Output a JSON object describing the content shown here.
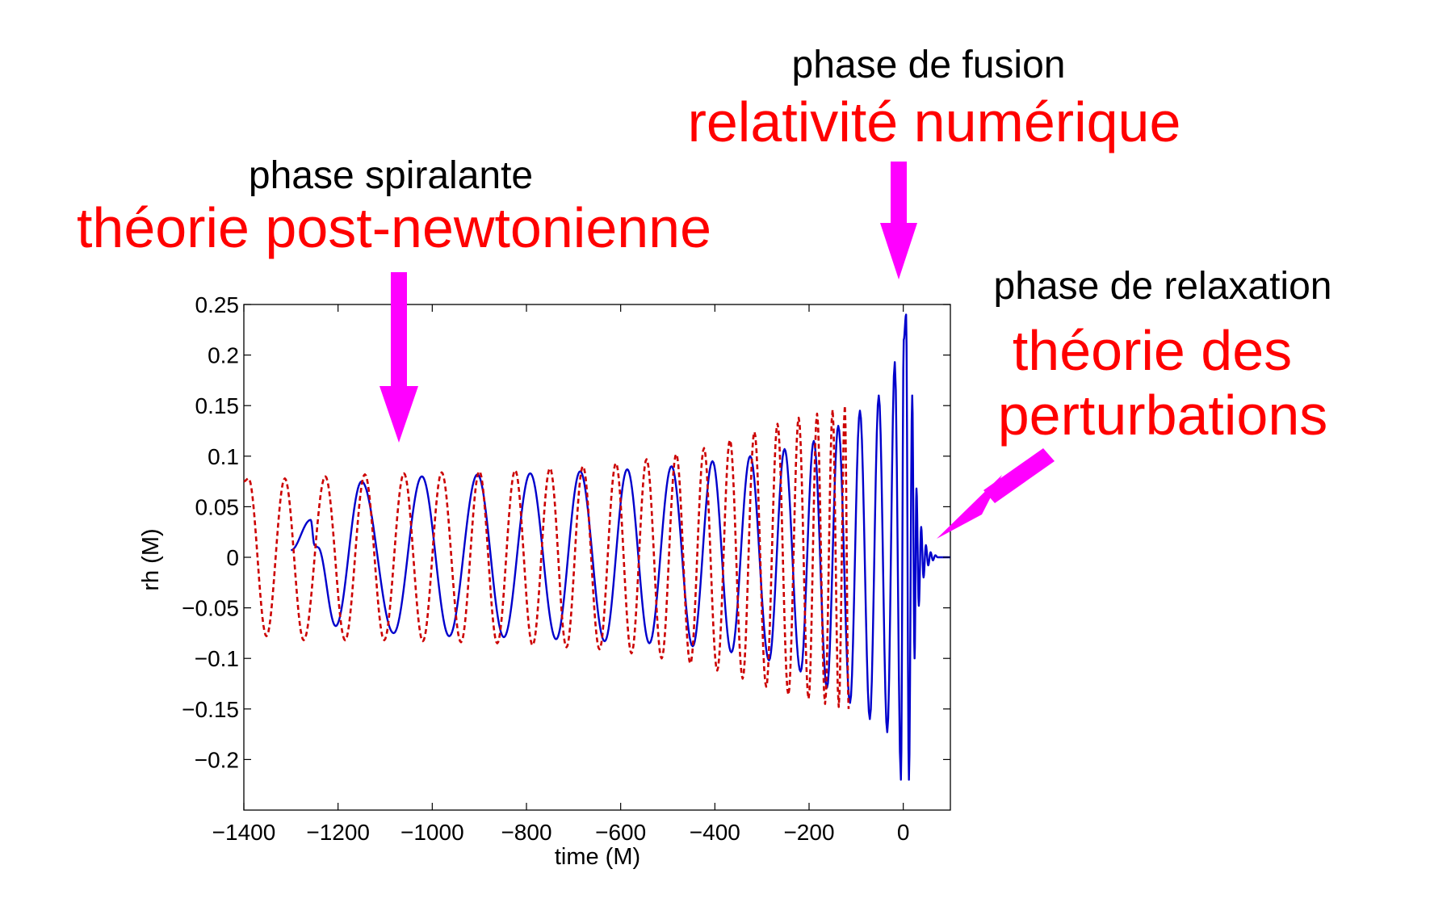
{
  "chart_data": {
    "type": "line",
    "xlabel": "time (M)",
    "ylabel": "rh (M)",
    "xlim": [
      -1400,
      100
    ],
    "ylim": [
      -0.25,
      0.25
    ],
    "x_ticks": [
      -1400,
      -1200,
      -1000,
      -800,
      -600,
      -400,
      -200,
      0
    ],
    "x_tick_labels": [
      "−1400",
      "−1200",
      "−1000",
      "−800",
      "−600",
      "−400",
      "−200",
      "0"
    ],
    "y_ticks": [
      0.25,
      0.2,
      0.15,
      0.1,
      0.05,
      0,
      -0.05,
      -0.1,
      -0.15,
      -0.2
    ],
    "y_tick_labels": [
      "0.25",
      "0.2",
      "0.15",
      "0.1",
      "0.05",
      "0",
      "−0.05",
      "−0.1",
      "−0.15",
      "−0.2"
    ],
    "grid": false,
    "series": [
      {
        "style": "solid",
        "color": "#0000cc",
        "extrema": [
          [
            -1300,
            0.007
          ],
          [
            -1258,
            0.037
          ],
          [
            -1250,
            0.012
          ],
          [
            -1243,
            0.01
          ],
          [
            -1205,
            -0.068
          ],
          [
            -1150,
            0.075
          ],
          [
            -1082,
            -0.075
          ],
          [
            -1022,
            0.08
          ],
          [
            -964,
            -0.078
          ],
          [
            -904,
            0.082
          ],
          [
            -848,
            -0.079
          ],
          [
            -792,
            0.083
          ],
          [
            -737,
            -0.081
          ],
          [
            -686,
            0.085
          ],
          [
            -634,
            -0.083
          ],
          [
            -586,
            0.087
          ],
          [
            -539,
            -0.085
          ],
          [
            -492,
            0.09
          ],
          [
            -447,
            -0.088
          ],
          [
            -405,
            0.095
          ],
          [
            -365,
            -0.094
          ],
          [
            -325,
            0.1
          ],
          [
            -285,
            -0.102
          ],
          [
            -252,
            0.107
          ],
          [
            -218,
            -0.113
          ],
          [
            -190,
            0.115
          ],
          [
            -162,
            -0.129
          ],
          [
            -138,
            0.13
          ],
          [
            -113,
            -0.144
          ],
          [
            -92,
            0.145
          ],
          [
            -71,
            -0.16
          ],
          [
            -52,
            0.16
          ],
          [
            -34,
            -0.173
          ],
          [
            -18,
            0.193
          ],
          [
            -5,
            -0.22
          ],
          [
            1,
            0.215
          ],
          [
            6,
            0.24
          ],
          [
            12,
            -0.22
          ],
          [
            19,
            0.16
          ],
          [
            24,
            -0.1
          ],
          [
            28,
            0.068
          ],
          [
            33,
            -0.048
          ],
          [
            38,
            0.03
          ],
          [
            43,
            -0.02
          ],
          [
            48,
            0.012
          ],
          [
            53,
            -0.008
          ],
          [
            58,
            0.005
          ],
          [
            63,
            -0.003
          ],
          [
            68,
            0.002
          ],
          [
            73,
            0.0
          ],
          [
            100,
            0.0
          ]
        ]
      },
      {
        "style": "dashed",
        "color": "#cc0000",
        "extrema": [
          [
            -1400,
            0.075
          ],
          [
            -1390,
            0.078
          ],
          [
            -1352,
            -0.078
          ],
          [
            -1313,
            0.078
          ],
          [
            -1273,
            -0.082
          ],
          [
            -1227,
            0.08
          ],
          [
            -1185,
            -0.082
          ],
          [
            -1143,
            0.082
          ],
          [
            -1102,
            -0.082
          ],
          [
            -1060,
            0.083
          ],
          [
            -1020,
            -0.083
          ],
          [
            -980,
            0.084
          ],
          [
            -939,
            -0.084
          ],
          [
            -900,
            0.085
          ],
          [
            -862,
            -0.085
          ],
          [
            -824,
            0.086
          ],
          [
            -787,
            -0.087
          ],
          [
            -750,
            0.088
          ],
          [
            -715,
            -0.089
          ],
          [
            -680,
            0.09
          ],
          [
            -645,
            -0.091
          ],
          [
            -610,
            0.093
          ],
          [
            -577,
            -0.095
          ],
          [
            -545,
            0.097
          ],
          [
            -513,
            -0.1
          ],
          [
            -482,
            0.102
          ],
          [
            -452,
            -0.105
          ],
          [
            -423,
            0.108
          ],
          [
            -395,
            -0.112
          ],
          [
            -368,
            0.116
          ],
          [
            -341,
            -0.12
          ],
          [
            -316,
            0.124
          ],
          [
            -291,
            -0.128
          ],
          [
            -267,
            0.132
          ],
          [
            -244,
            -0.136
          ],
          [
            -222,
            0.138
          ],
          [
            -201,
            -0.14
          ],
          [
            -183,
            0.142
          ],
          [
            -166,
            -0.145
          ],
          [
            -150,
            0.146
          ],
          [
            -137,
            -0.148
          ],
          [
            -124,
            0.15
          ],
          [
            -116,
            -0.15
          ]
        ]
      }
    ],
    "annotations": [
      {
        "text_black": "phase spiralante",
        "text_red": "théorie post-newtonienne"
      },
      {
        "text_black": "phase de fusion",
        "text_red": "relativité numérique"
      },
      {
        "text_black": "phase de relaxation",
        "text_red_lines": [
          "théorie des",
          "perturbations"
        ]
      }
    ],
    "arrow_color": "#ff00ff"
  }
}
